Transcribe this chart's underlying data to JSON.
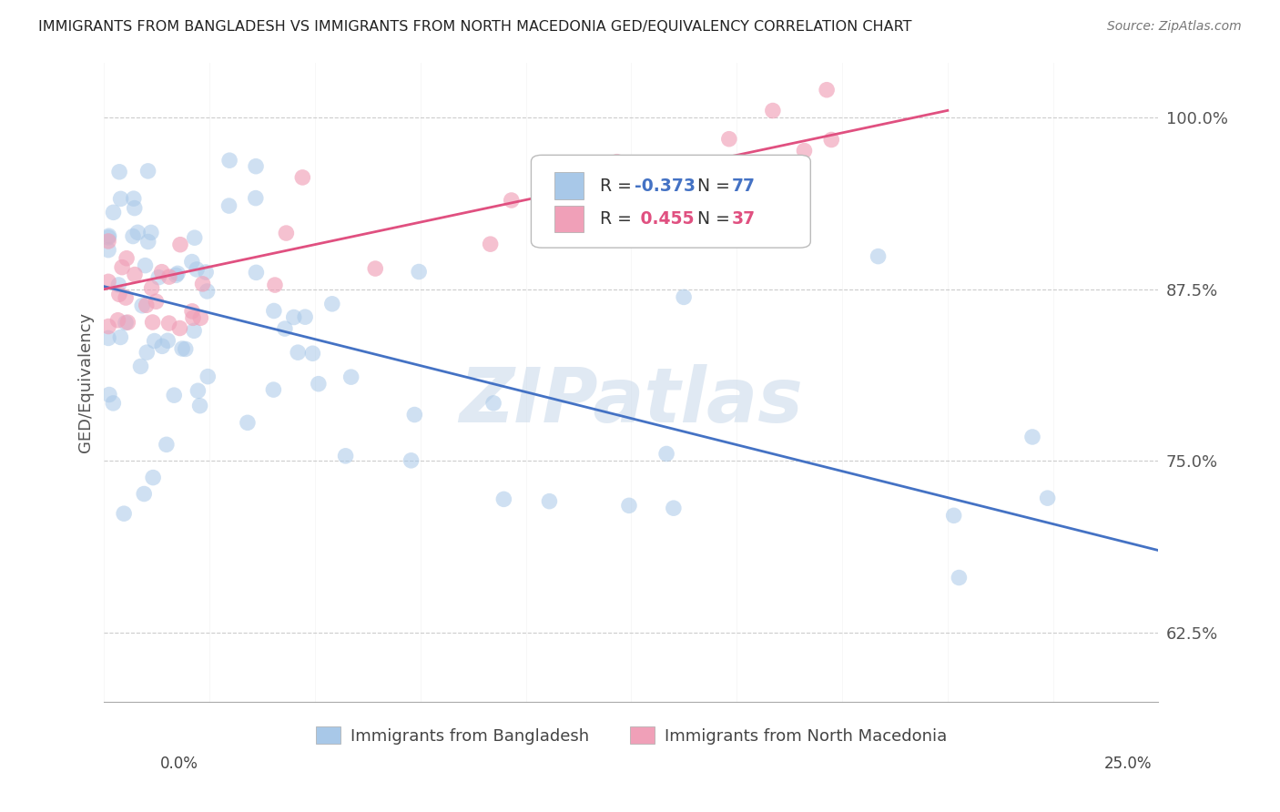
{
  "title": "IMMIGRANTS FROM BANGLADESH VS IMMIGRANTS FROM NORTH MACEDONIA GED/EQUIVALENCY CORRELATION CHART",
  "source": "Source: ZipAtlas.com",
  "ylabel": "GED/Equivalency",
  "ytick_labels": [
    "62.5%",
    "75.0%",
    "87.5%",
    "100.0%"
  ],
  "ytick_values": [
    0.625,
    0.75,
    0.875,
    1.0
  ],
  "xlim": [
    0.0,
    0.25
  ],
  "ylim": [
    0.575,
    1.04
  ],
  "legend_blue_label": "Immigrants from Bangladesh",
  "legend_pink_label": "Immigrants from North Macedonia",
  "R_blue": -0.373,
  "N_blue": 77,
  "R_pink": 0.455,
  "N_pink": 37,
  "blue_color": "#a8c8e8",
  "pink_color": "#f0a0b8",
  "blue_line_color": "#4472c4",
  "pink_line_color": "#e05080",
  "watermark": "ZIPatlas",
  "background_color": "#ffffff",
  "grid_color": "#cccccc",
  "blue_trend_x0": 0.0,
  "blue_trend_y0": 0.877,
  "blue_trend_x1": 0.25,
  "blue_trend_y1": 0.685,
  "pink_trend_x0": 0.0,
  "pink_trend_y0": 0.875,
  "pink_trend_x1": 0.2,
  "pink_trend_y1": 1.005
}
